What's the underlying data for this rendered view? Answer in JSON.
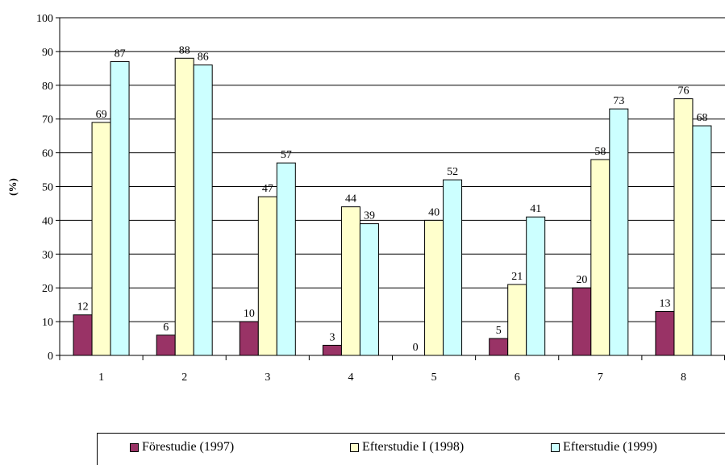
{
  "chart_data": {
    "type": "bar",
    "categories": [
      "1",
      "2",
      "3",
      "4",
      "5",
      "6",
      "7",
      "8"
    ],
    "series": [
      {
        "name": "Förestudie (1997)",
        "values": [
          12,
          6,
          10,
          3,
          0,
          5,
          20,
          13
        ],
        "color": "#993366"
      },
      {
        "name": "Efterstudie I (1998)",
        "values": [
          69,
          88,
          47,
          44,
          40,
          21,
          58,
          76
        ],
        "color": "#FFFFCC"
      },
      {
        "name": "Efterstudie (1999)",
        "values": [
          87,
          86,
          57,
          39,
          52,
          41,
          73,
          68
        ],
        "color": "#CCFFFF"
      }
    ],
    "ylabel": "(%)",
    "ylim": [
      0,
      100
    ],
    "yticks": [
      "0",
      "10",
      "20",
      "30",
      "40",
      "50",
      "60",
      "70",
      "80",
      "90",
      "100"
    ],
    "grid": true,
    "legend_position": "bottom",
    "data_labels": true
  }
}
